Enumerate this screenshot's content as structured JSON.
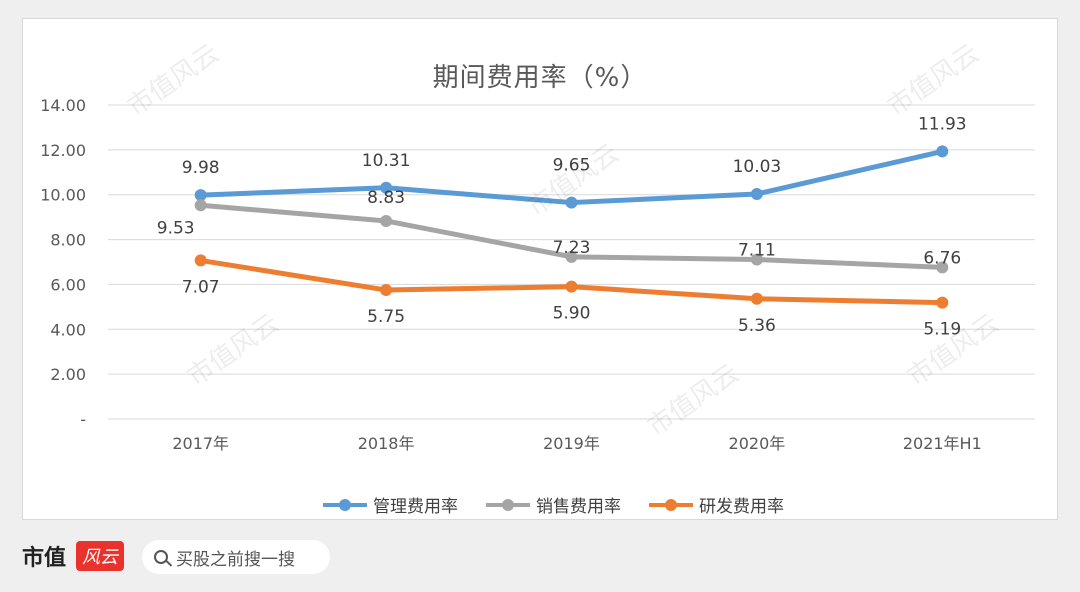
{
  "chart_data": {
    "type": "line",
    "title": "期间费用率（%）",
    "categories": [
      "2017年",
      "2018年",
      "2019年",
      "2020年",
      "2021年H1"
    ],
    "ylim": [
      0,
      14
    ],
    "yticks": [
      "-",
      "2.00",
      "4.00",
      "6.00",
      "8.00",
      "10.00",
      "12.00",
      "14.00"
    ],
    "grid": true,
    "legend_position": "bottom",
    "series": [
      {
        "name": "管理费用率",
        "color": "#5b9bd5",
        "values": [
          9.98,
          10.31,
          9.65,
          10.03,
          11.93
        ],
        "labels": [
          "9.98",
          "10.31",
          "9.65",
          "10.03",
          "11.93"
        ]
      },
      {
        "name": "销售费用率",
        "color": "#a5a5a5",
        "values": [
          9.53,
          8.83,
          7.23,
          7.11,
          6.76
        ],
        "labels": [
          "9.53",
          "8.83",
          "7.23",
          "7.11",
          "6.76"
        ]
      },
      {
        "name": "研发费用率",
        "color": "#ed7d31",
        "values": [
          7.07,
          5.75,
          5.9,
          5.36,
          5.19
        ],
        "labels": [
          "7.07",
          "5.75",
          "5.90",
          "5.36",
          "5.19"
        ]
      }
    ]
  },
  "brand": {
    "name": "市值",
    "logo_text": "风云"
  },
  "search": {
    "placeholder": "买股之前搜一搜"
  },
  "watermark_text": "市值风云"
}
